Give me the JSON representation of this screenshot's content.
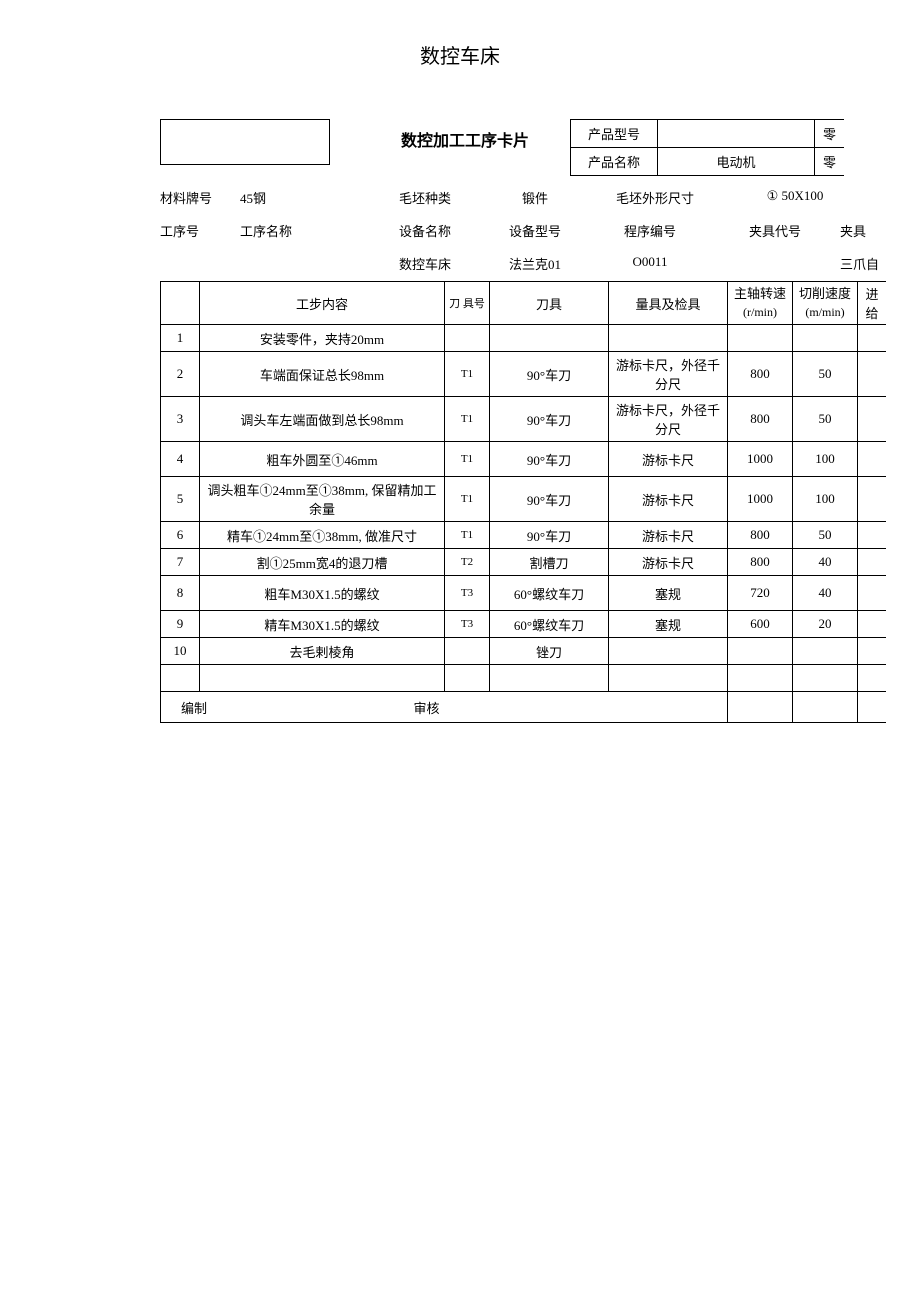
{
  "page_title": "数控车床",
  "card_title": "数控加工工序卡片",
  "product": {
    "model_label": "产品型号",
    "model_value": "",
    "name_label": "产品名称",
    "name_value": "电动机",
    "cut1": "零",
    "cut2": "零"
  },
  "meta1": {
    "material_label": "材料牌号",
    "material_value": "45钢",
    "blank_type_label": "毛坯种类",
    "blank_type_value": "锻件",
    "blank_size_label": "毛坯外形尺寸",
    "blank_size_value": "① 50X100"
  },
  "meta2": {
    "proc_no_label": "工序号",
    "proc_name_label": "工序名称",
    "equip_name_label": "设备名称",
    "equip_model_label": "设备型号",
    "prog_no_label": "程序编号",
    "fixture_code_label": "夹具代号",
    "fixture_cut": "夹具"
  },
  "meta3": {
    "equip_name_value": "数控车床",
    "equip_model_value": "法兰克01",
    "prog_no_value": "O0011",
    "fixture_value_cut": "三爪自"
  },
  "headers": {
    "idx": "",
    "step": "工步内容",
    "tool_no": "刀 具号",
    "tool": "刀具",
    "gauge": "量具及检具",
    "spindle": "主轴转速",
    "spindle_unit": "(r/min)",
    "cut": "切削速度",
    "cut_unit": "(m/min)",
    "feed": "进给"
  },
  "rows": [
    {
      "i": "1",
      "step": "安装零件，夹持20mm",
      "tno": "",
      "tool": "",
      "gauge": "",
      "spd": "",
      "cut": "",
      "h": "short"
    },
    {
      "i": "2",
      "step": "车端面保证总长98mm",
      "tno": "T1",
      "tool": "90°车刀",
      "gauge": "游标卡尺，外径千分尺",
      "spd": "800",
      "cut": "50",
      "h": "tall"
    },
    {
      "i": "3",
      "step": "调头车左端面做到总长98mm",
      "tno": "T1",
      "tool": "90°车刀",
      "gauge": "游标卡尺，外径千分尺",
      "spd": "800",
      "cut": "50",
      "h": "tall"
    },
    {
      "i": "4",
      "step": "粗车外圆至①46mm",
      "tno": "T1",
      "tool": "90°车刀",
      "gauge": "游标卡尺",
      "spd": "1000",
      "cut": "100",
      "h": "med"
    },
    {
      "i": "5",
      "step": "调头粗车①24mm至①38mm, 保留精加工余量",
      "tno": "T1",
      "tool": "90°车刀",
      "gauge": "游标卡尺",
      "spd": "1000",
      "cut": "100",
      "h": "tall"
    },
    {
      "i": "6",
      "step": "精车①24mm至①38mm, 做准尺寸",
      "tno": "T1",
      "tool": "90°车刀",
      "gauge": "游标卡尺",
      "spd": "800",
      "cut": "50",
      "h": "short"
    },
    {
      "i": "7",
      "step": "割①25mm宽4的退刀槽",
      "tno": "T2",
      "tool": "割槽刀",
      "gauge": "游标卡尺",
      "spd": "800",
      "cut": "40",
      "h": "short"
    },
    {
      "i": "8",
      "step": "粗车M30X1.5的螺纹",
      "tno": "T3",
      "tool": "60°螺纹车刀",
      "gauge": "塞规",
      "spd": "720",
      "cut": "40",
      "h": "med"
    },
    {
      "i": "9",
      "step": "精车M30X1.5的螺纹",
      "tno": "T3",
      "tool": "60°螺纹车刀",
      "gauge": "塞规",
      "spd": "600",
      "cut": "20",
      "h": "short"
    },
    {
      "i": "10",
      "step": "去毛剌棱角",
      "tno": "",
      "tool": "锉刀",
      "gauge": "",
      "spd": "",
      "cut": "",
      "h": "short"
    }
  ],
  "footer": {
    "compile": "编制",
    "review": "审核"
  }
}
